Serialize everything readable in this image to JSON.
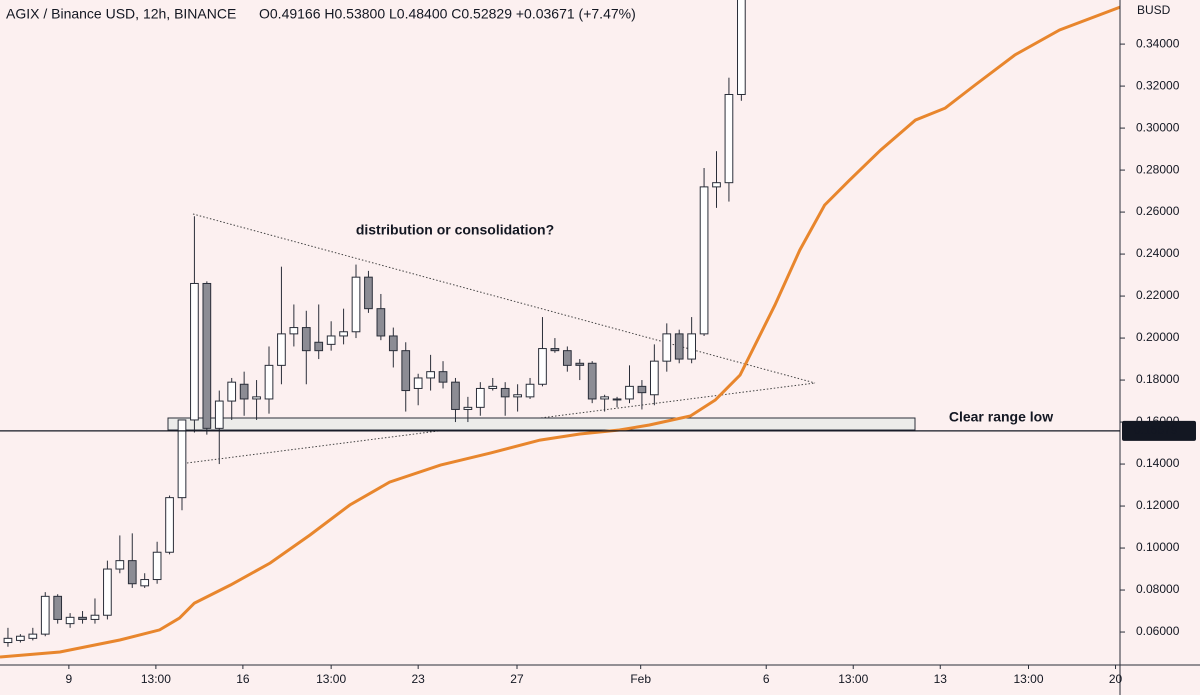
{
  "chart_data": {
    "type": "candlestick",
    "title": "AGIX / Binance USD, 12h, BINANCE",
    "ohlc_legend": "O0.49166 H0.53800 L0.48400 C0.52829 +0.03671 (+7.47%)",
    "currency": "BUSD",
    "annotations": [
      "distribution or consolidation?",
      "Clear range low"
    ],
    "up_color": "#ffffff",
    "down_color": "#8c8c94",
    "outline_color": "#2a2e39",
    "x": [
      0,
      1,
      2,
      3,
      4,
      5,
      6,
      7,
      8,
      9,
      10,
      11,
      12,
      13,
      14,
      15,
      16,
      17,
      18,
      19,
      20,
      21,
      22,
      23,
      24,
      25,
      26,
      27,
      28,
      29,
      30,
      31,
      32,
      33,
      34,
      35,
      36,
      37,
      38,
      39,
      40,
      41,
      42,
      43,
      44,
      45,
      46,
      47,
      48,
      49,
      50,
      51,
      52,
      53,
      54,
      55,
      56,
      57,
      58,
      59
    ],
    "open": [
      0.055,
      0.056,
      0.057,
      0.059,
      0.077,
      0.064,
      0.067,
      0.066,
      0.068,
      0.09,
      0.094,
      0.082,
      0.085,
      0.098,
      0.124,
      0.161,
      0.226,
      0.157,
      0.17,
      0.178,
      0.171,
      0.171,
      0.187,
      0.202,
      0.205,
      0.198,
      0.197,
      0.201,
      0.203,
      0.229,
      0.214,
      0.201,
      0.194,
      0.176,
      0.181,
      0.184,
      0.179,
      0.166,
      0.167,
      0.176,
      0.176,
      0.172,
      0.172,
      0.178,
      0.195,
      0.194,
      0.188,
      0.188,
      0.171,
      0.171,
      0.171,
      0.177,
      0.173,
      0.189,
      0.202,
      0.19,
      0.202,
      0.272,
      0.274,
      0.316
    ],
    "high": [
      0.062,
      0.059,
      0.062,
      0.079,
      0.078,
      0.069,
      0.07,
      0.076,
      0.094,
      0.106,
      0.107,
      0.088,
      0.103,
      0.125,
      0.161,
      0.258,
      0.227,
      0.175,
      0.181,
      0.184,
      0.18,
      0.196,
      0.234,
      0.216,
      0.213,
      0.216,
      0.208,
      0.214,
      0.235,
      0.232,
      0.221,
      0.205,
      0.198,
      0.183,
      0.192,
      0.189,
      0.181,
      0.172,
      0.179,
      0.181,
      0.179,
      0.178,
      0.181,
      0.21,
      0.2,
      0.196,
      0.19,
      0.189,
      0.173,
      0.172,
      0.187,
      0.18,
      0.197,
      0.207,
      0.204,
      0.21,
      0.281,
      0.289,
      0.324,
      0.37
    ],
    "low": [
      0.053,
      0.055,
      0.056,
      0.058,
      0.064,
      0.062,
      0.064,
      0.064,
      0.066,
      0.088,
      0.081,
      0.081,
      0.083,
      0.097,
      0.118,
      0.155,
      0.154,
      0.14,
      0.161,
      0.163,
      0.161,
      0.164,
      0.178,
      0.196,
      0.178,
      0.19,
      0.194,
      0.197,
      0.2,
      0.212,
      0.199,
      0.186,
      0.165,
      0.168,
      0.175,
      0.176,
      0.16,
      0.16,
      0.163,
      0.175,
      0.163,
      0.165,
      0.171,
      0.177,
      0.193,
      0.184,
      0.18,
      0.169,
      0.165,
      0.167,
      0.169,
      0.166,
      0.168,
      0.184,
      0.188,
      0.188,
      0.201,
      0.262,
      0.265,
      0.313
    ],
    "close": [
      0.057,
      0.058,
      0.059,
      0.077,
      0.066,
      0.067,
      0.066,
      0.068,
      0.09,
      0.094,
      0.083,
      0.085,
      0.098,
      0.124,
      0.161,
      0.226,
      0.157,
      0.17,
      0.179,
      0.171,
      0.172,
      0.187,
      0.202,
      0.205,
      0.194,
      0.194,
      0.201,
      0.203,
      0.229,
      0.214,
      0.201,
      0.194,
      0.175,
      0.181,
      0.184,
      0.179,
      0.166,
      0.167,
      0.176,
      0.177,
      0.172,
      0.173,
      0.178,
      0.195,
      0.194,
      0.187,
      0.187,
      0.171,
      0.172,
      0.171,
      0.177,
      0.174,
      0.189,
      0.202,
      0.19,
      0.202,
      0.272,
      0.274,
      0.316,
      0.365
    ],
    "ma": {
      "color": "#e8862d",
      "x": [
        -0.64,
        4.18,
        9.0,
        12.2,
        13.8,
        15.0,
        17.9,
        21.1,
        24.3,
        27.5,
        30.7,
        34.8,
        38.8,
        42.8,
        46.0,
        49.2,
        51.6,
        54.9,
        56.9,
        58.9,
        61.7,
        63.7,
        65.7,
        67.7,
        70.2,
        73.0,
        75.4,
        77.8,
        81.0,
        84.6,
        89.46
      ],
      "values": [
        0.0481,
        0.0505,
        0.0562,
        0.061,
        0.0667,
        0.0738,
        0.0824,
        0.0929,
        0.1062,
        0.1205,
        0.1314,
        0.1395,
        0.1452,
        0.1514,
        0.1543,
        0.1562,
        0.1586,
        0.1629,
        0.1705,
        0.1824,
        0.2157,
        0.2419,
        0.2633,
        0.2752,
        0.2895,
        0.3038,
        0.3095,
        0.3205,
        0.3348,
        0.3467,
        0.3576
      ]
    },
    "price_line": 0.15579,
    "xlim": [
      -0.64,
      89.46
    ],
    "xticks": [
      {
        "value": 4.9,
        "label": "9"
      },
      {
        "value": 11.9,
        "label": "13:00"
      },
      {
        "value": 18.9,
        "label": "16"
      },
      {
        "value": 26,
        "label": "13:00"
      },
      {
        "value": 33,
        "label": "23"
      },
      {
        "value": 40.95,
        "label": "27"
      },
      {
        "value": 50.9,
        "label": "Feb"
      },
      {
        "value": 61,
        "label": "6"
      },
      {
        "value": 68,
        "label": "13:00"
      },
      {
        "value": 75,
        "label": "13"
      },
      {
        "value": 82.1,
        "label": "13:00"
      },
      {
        "value": 89.1,
        "label": "20"
      }
    ],
    "ylim": [
      0.0443,
      0.361
    ],
    "yticks": [
      {
        "value": 0.06,
        "label": "0.06000"
      },
      {
        "value": 0.08,
        "label": "0.08000"
      },
      {
        "value": 0.1,
        "label": "0.10000"
      },
      {
        "value": 0.12,
        "label": "0.12000"
      },
      {
        "value": 0.14,
        "label": "0.14000"
      },
      {
        "value": 0.16,
        "label": "0.16000"
      },
      {
        "value": 0.18,
        "label": "0.18000"
      },
      {
        "value": 0.2,
        "label": "0.20000"
      },
      {
        "value": 0.22,
        "label": "0.22000"
      },
      {
        "value": 0.24,
        "label": "0.24000"
      },
      {
        "value": 0.26,
        "label": "0.26000"
      },
      {
        "value": 0.28,
        "label": "0.28000"
      },
      {
        "value": 0.3,
        "label": "0.30000"
      },
      {
        "value": 0.32,
        "label": "0.32000"
      },
      {
        "value": 0.34,
        "label": "0.34000"
      }
    ]
  }
}
